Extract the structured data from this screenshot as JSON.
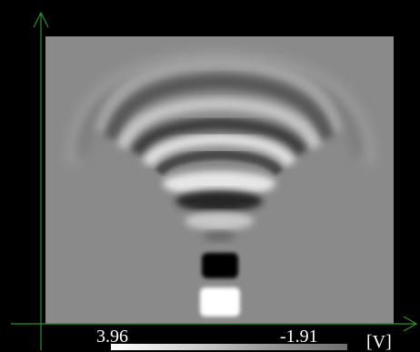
{
  "colorbar": {
    "max_label": "3.96",
    "min_label": "-1.91",
    "unit_label": "[V]"
  },
  "colors": {
    "background": "#000000",
    "plot_background": "#8a8a8a",
    "axis": "#2f8f2f"
  }
}
